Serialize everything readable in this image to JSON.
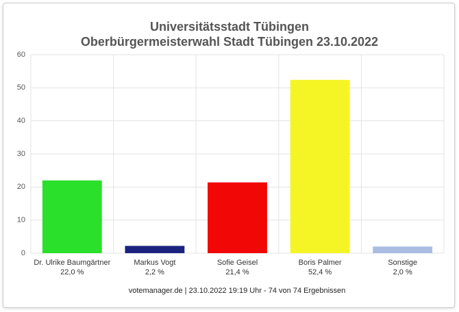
{
  "chart_data": {
    "type": "bar",
    "title": "Universitätsstadt Tübingen",
    "subtitle": "Oberbürgermeisterwahl Stadt Tübingen 23.10.2022",
    "categories": [
      "Dr. Ulrike Baumgärtner",
      "Markus Vogt",
      "Sofie Geisel",
      "Boris Palmer",
      "Sonstige"
    ],
    "values": [
      22.0,
      2.2,
      21.4,
      52.4,
      2.0
    ],
    "value_labels": [
      "22,0 %",
      "2,2 %",
      "21,4 %",
      "52,4 %",
      "2,0 %"
    ],
    "colors": [
      "#2ae02a",
      "#1a237e",
      "#f20707",
      "#f5f525",
      "#a9bde3"
    ],
    "ylim": [
      0,
      60
    ],
    "yticks": [
      0,
      10,
      20,
      30,
      40,
      50,
      60
    ],
    "grid": true,
    "footer": "votemanager.de | 23.10.2022 19:19 Uhr - 74 von 74 Ergebnissen"
  }
}
